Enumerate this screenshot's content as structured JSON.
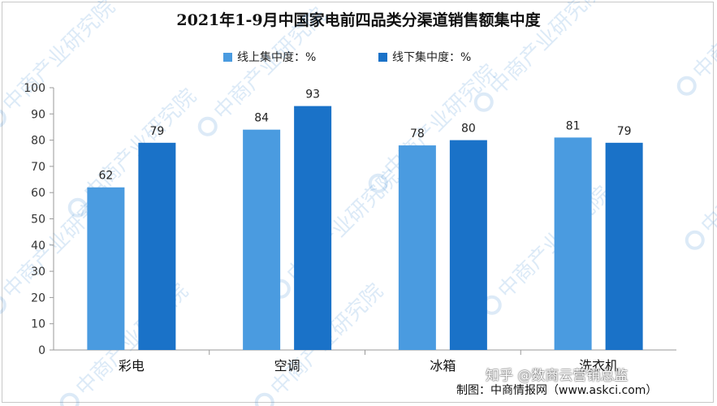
{
  "chart_data": {
    "type": "bar",
    "title": "2021年1-9月中国家电前四品类分渠道销售额集中度",
    "categories": [
      "彩电",
      "空调",
      "冰箱",
      "洗衣机"
    ],
    "series": [
      {
        "name": "线上集中度：%",
        "values": [
          62,
          84,
          78,
          81
        ],
        "color": "#4a9be0"
      },
      {
        "name": "线下集中度：%",
        "values": [
          79,
          93,
          80,
          79
        ],
        "color": "#1a72c8"
      }
    ],
    "ylim": [
      0,
      100
    ],
    "yticks": [
      0,
      10,
      20,
      30,
      40,
      50,
      60,
      70,
      80,
      90,
      100
    ],
    "grid": false,
    "legend_position": "top-center"
  },
  "watermark": {
    "text": "中商产业研究院"
  },
  "footer": {
    "source_label": "制图：中商情报网（www.askci.com）",
    "overlay_text": "知乎 @数商云营销总监"
  }
}
